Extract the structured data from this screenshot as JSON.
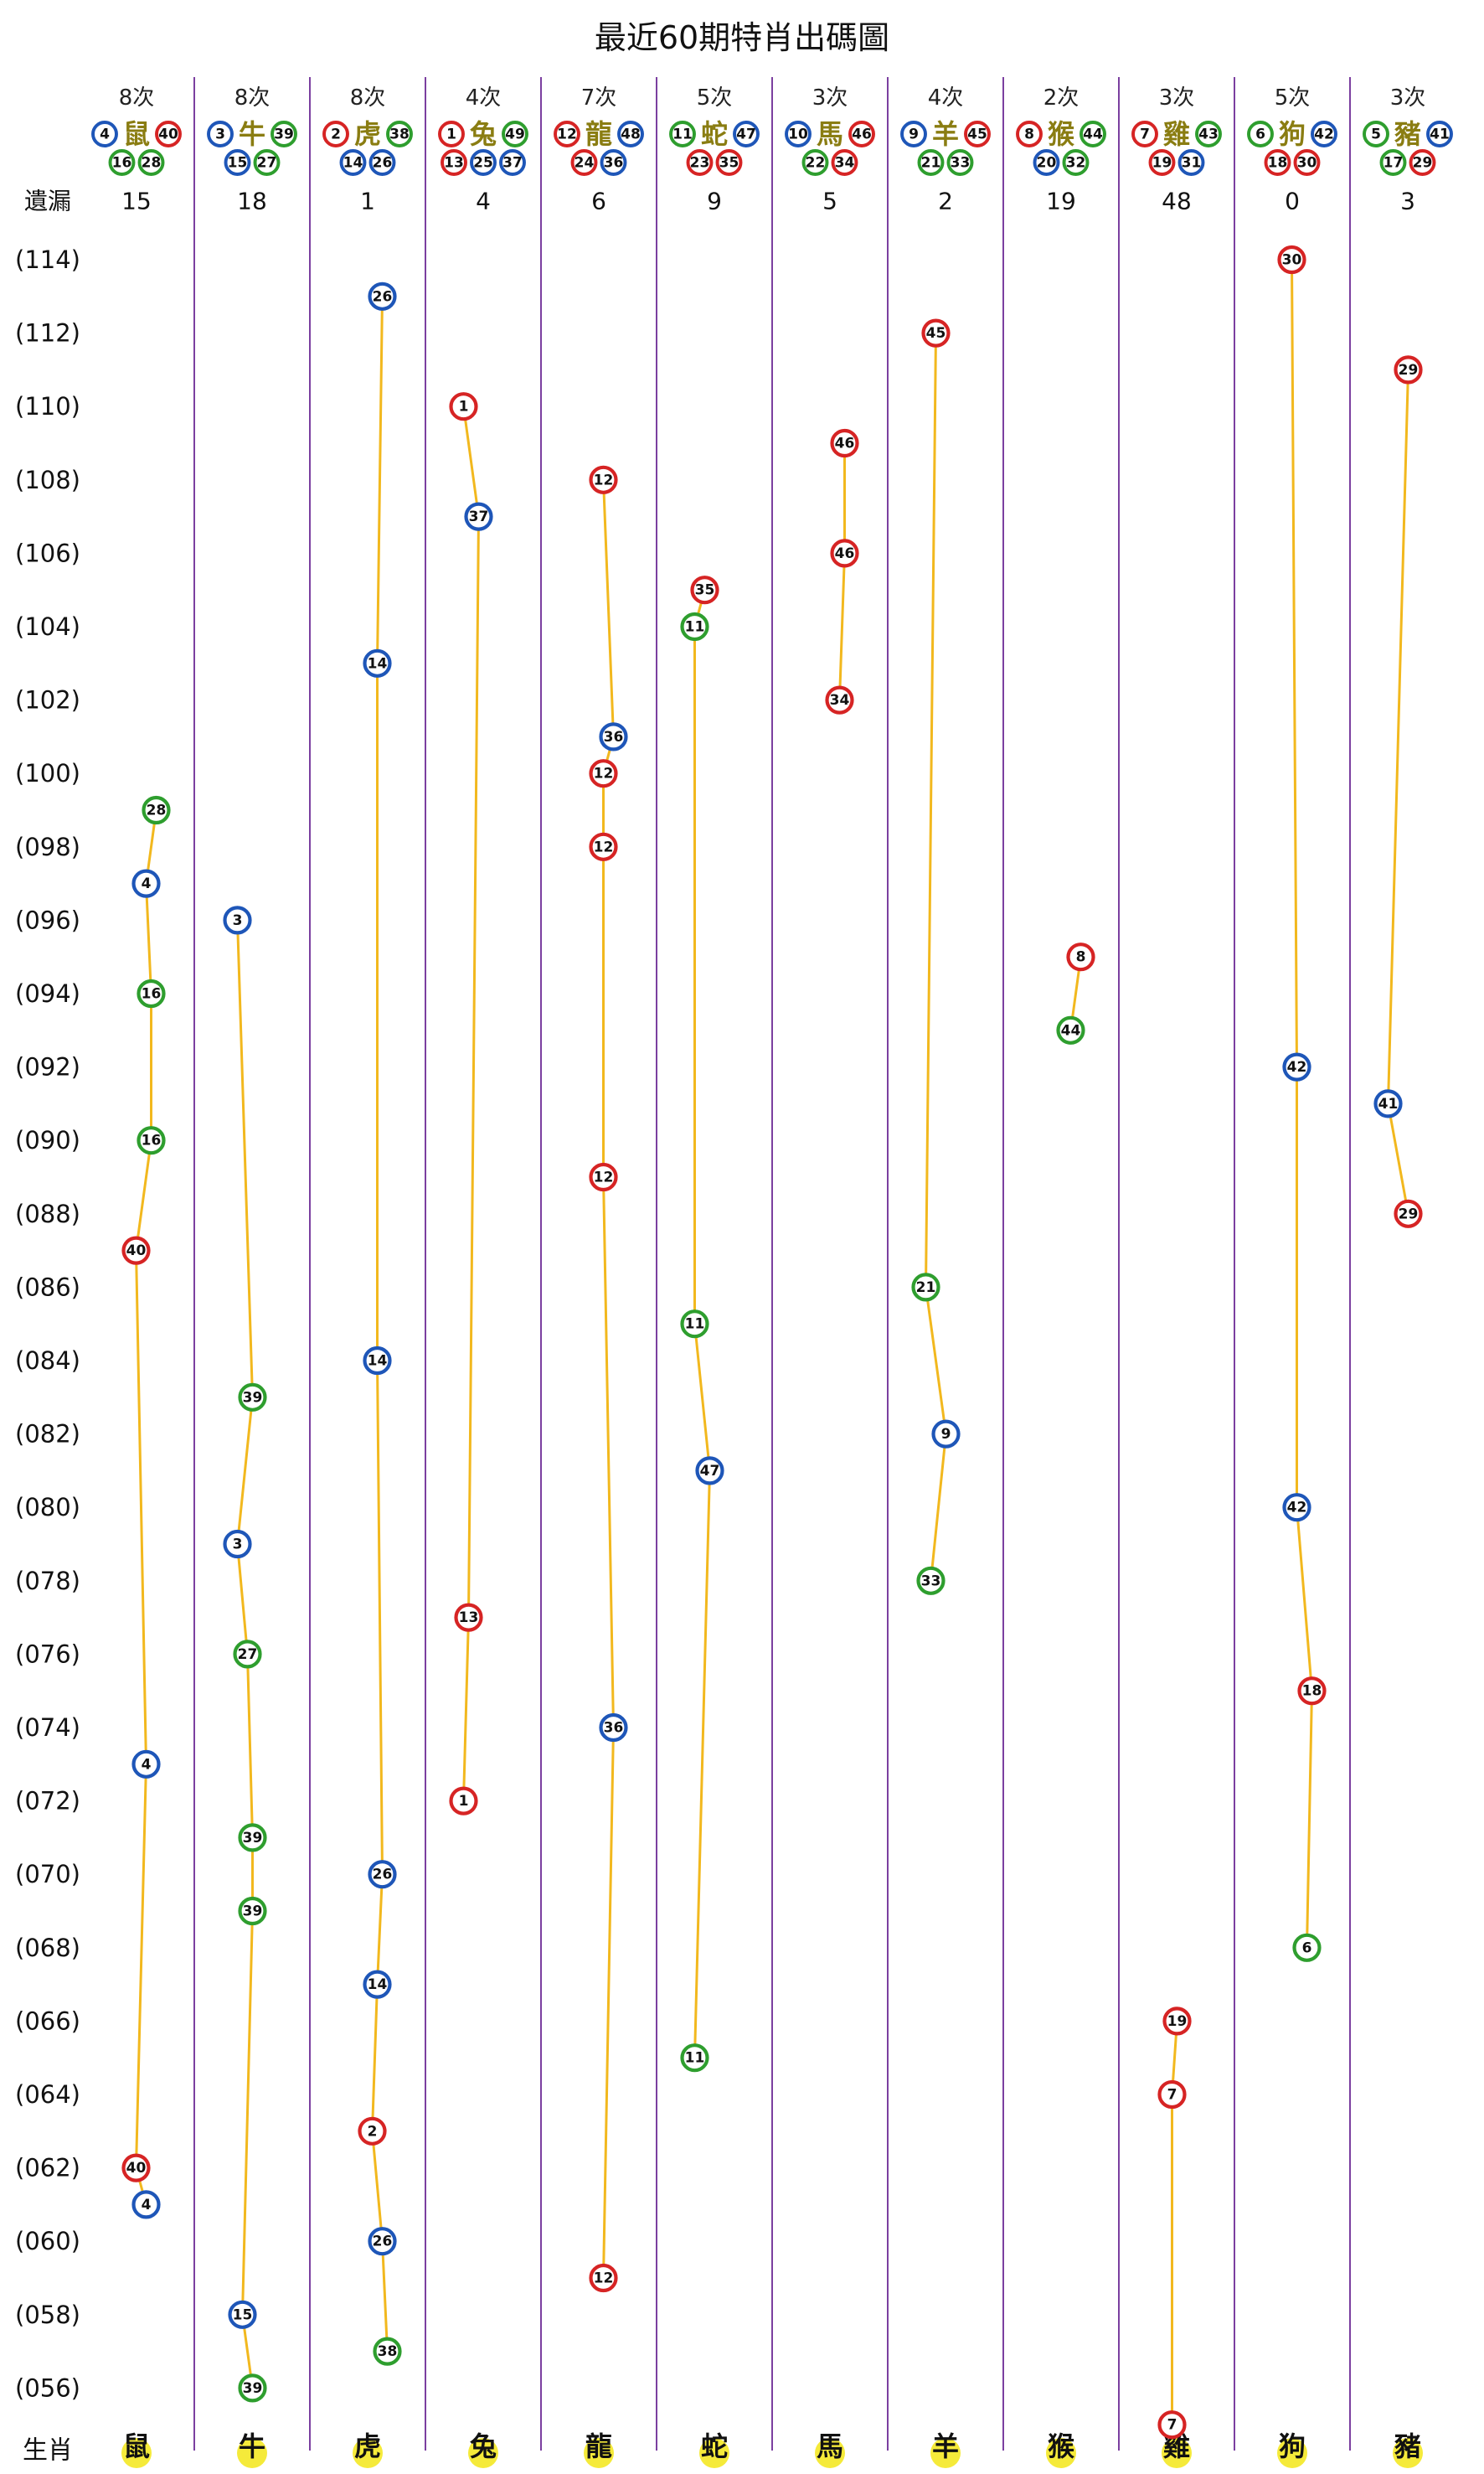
{
  "title": "最近60期特肖出碼圖",
  "labels": {
    "missing": "遺漏",
    "zodiac": "生肖"
  },
  "colors": {
    "red": "#d62424",
    "blue": "#1e56b8",
    "green": "#2e9e2e",
    "line": "#f2b81e",
    "divider": "#7b3fa0"
  },
  "zodiacs": [
    {
      "name": "鼠",
      "count": "8次",
      "missing": "15",
      "nums": [
        {
          "n": "4",
          "c": "blue"
        },
        {
          "n": "40",
          "c": "red"
        },
        {
          "n": "16",
          "c": "green"
        },
        {
          "n": "28",
          "c": "green"
        }
      ]
    },
    {
      "name": "牛",
      "count": "8次",
      "missing": "18",
      "nums": [
        {
          "n": "3",
          "c": "blue"
        },
        {
          "n": "39",
          "c": "green"
        },
        {
          "n": "15",
          "c": "blue"
        },
        {
          "n": "27",
          "c": "green"
        }
      ]
    },
    {
      "name": "虎",
      "count": "8次",
      "missing": "1",
      "nums": [
        {
          "n": "2",
          "c": "red"
        },
        {
          "n": "38",
          "c": "green"
        },
        {
          "n": "14",
          "c": "blue"
        },
        {
          "n": "26",
          "c": "blue"
        }
      ]
    },
    {
      "name": "兔",
      "count": "4次",
      "missing": "4",
      "nums": [
        {
          "n": "1",
          "c": "red"
        },
        {
          "n": "49",
          "c": "green"
        },
        {
          "n": "13",
          "c": "red"
        },
        {
          "n": "25",
          "c": "blue"
        },
        {
          "n": "37",
          "c": "blue"
        }
      ]
    },
    {
      "name": "龍",
      "count": "7次",
      "missing": "6",
      "nums": [
        {
          "n": "12",
          "c": "red"
        },
        {
          "n": "48",
          "c": "blue"
        },
        {
          "n": "24",
          "c": "red"
        },
        {
          "n": "36",
          "c": "blue"
        }
      ]
    },
    {
      "name": "蛇",
      "count": "5次",
      "missing": "9",
      "nums": [
        {
          "n": "11",
          "c": "green"
        },
        {
          "n": "47",
          "c": "blue"
        },
        {
          "n": "23",
          "c": "red"
        },
        {
          "n": "35",
          "c": "red"
        }
      ]
    },
    {
      "name": "馬",
      "count": "3次",
      "missing": "5",
      "nums": [
        {
          "n": "10",
          "c": "blue"
        },
        {
          "n": "46",
          "c": "red"
        },
        {
          "n": "22",
          "c": "green"
        },
        {
          "n": "34",
          "c": "red"
        }
      ]
    },
    {
      "name": "羊",
      "count": "4次",
      "missing": "2",
      "nums": [
        {
          "n": "9",
          "c": "blue"
        },
        {
          "n": "45",
          "c": "red"
        },
        {
          "n": "21",
          "c": "green"
        },
        {
          "n": "33",
          "c": "green"
        }
      ]
    },
    {
      "name": "猴",
      "count": "2次",
      "missing": "19",
      "nums": [
        {
          "n": "8",
          "c": "red"
        },
        {
          "n": "44",
          "c": "green"
        },
        {
          "n": "20",
          "c": "blue"
        },
        {
          "n": "32",
          "c": "green"
        }
      ]
    },
    {
      "name": "雞",
      "count": "3次",
      "missing": "48",
      "nums": [
        {
          "n": "7",
          "c": "red"
        },
        {
          "n": "43",
          "c": "green"
        },
        {
          "n": "19",
          "c": "red"
        },
        {
          "n": "31",
          "c": "blue"
        }
      ]
    },
    {
      "name": "狗",
      "count": "5次",
      "missing": "0",
      "nums": [
        {
          "n": "6",
          "c": "green"
        },
        {
          "n": "42",
          "c": "blue"
        },
        {
          "n": "18",
          "c": "red"
        },
        {
          "n": "30",
          "c": "red"
        }
      ]
    },
    {
      "name": "豬",
      "count": "3次",
      "missing": "3",
      "nums": [
        {
          "n": "5",
          "c": "green"
        },
        {
          "n": "41",
          "c": "blue"
        },
        {
          "n": "17",
          "c": "green"
        },
        {
          "n": "29",
          "c": "red"
        }
      ]
    }
  ],
  "chart_data": {
    "type": "scatter",
    "title": "最近60期特肖出碼圖",
    "xlabel": "生肖",
    "ylabel": "",
    "categories": [
      "鼠",
      "牛",
      "虎",
      "兔",
      "龍",
      "蛇",
      "馬",
      "羊",
      "猴",
      "雞",
      "狗",
      "豬"
    ],
    "y_tick_labels": [
      "(114)",
      "(112)",
      "(110)",
      "(108)",
      "(106)",
      "(104)",
      "(102)",
      "(100)",
      "(098)",
      "(096)",
      "(094)",
      "(092)",
      "(090)",
      "(088)",
      "(086)",
      "(084)",
      "(082)",
      "(080)",
      "(078)",
      "(076)",
      "(074)",
      "(072)",
      "(070)",
      "(068)",
      "(066)",
      "(064)",
      "(062)",
      "(060)",
      "(058)",
      "(056)"
    ],
    "ylim": [
      55,
      115
    ],
    "points": [
      {
        "p": 114,
        "z": 10,
        "n": 30,
        "c": "red"
      },
      {
        "p": 113,
        "z": 2,
        "n": 26,
        "c": "blue"
      },
      {
        "p": 112,
        "z": 7,
        "n": 45,
        "c": "red"
      },
      {
        "p": 111,
        "z": 11,
        "n": 29,
        "c": "red"
      },
      {
        "p": 110,
        "z": 3,
        "n": 1,
        "c": "red"
      },
      {
        "p": 109,
        "z": 6,
        "n": 46,
        "c": "red"
      },
      {
        "p": 108,
        "z": 4,
        "n": 12,
        "c": "red"
      },
      {
        "p": 107,
        "z": 3,
        "n": 37,
        "c": "blue"
      },
      {
        "p": 106,
        "z": 6,
        "n": 46,
        "c": "red"
      },
      {
        "p": 105,
        "z": 5,
        "n": 35,
        "c": "red"
      },
      {
        "p": 104,
        "z": 5,
        "n": 11,
        "c": "green"
      },
      {
        "p": 103,
        "z": 2,
        "n": 14,
        "c": "blue"
      },
      {
        "p": 102,
        "z": 6,
        "n": 34,
        "c": "red"
      },
      {
        "p": 101,
        "z": 4,
        "n": 36,
        "c": "blue"
      },
      {
        "p": 100,
        "z": 4,
        "n": 12,
        "c": "red"
      },
      {
        "p": 99,
        "z": 0,
        "n": 28,
        "c": "green"
      },
      {
        "p": 98,
        "z": 4,
        "n": 12,
        "c": "red"
      },
      {
        "p": 97,
        "z": 0,
        "n": 4,
        "c": "blue"
      },
      {
        "p": 96,
        "z": 1,
        "n": 3,
        "c": "blue"
      },
      {
        "p": 95,
        "z": 8,
        "n": 8,
        "c": "red"
      },
      {
        "p": 94,
        "z": 0,
        "n": 16,
        "c": "green"
      },
      {
        "p": 93,
        "z": 8,
        "n": 44,
        "c": "green"
      },
      {
        "p": 92,
        "z": 10,
        "n": 42,
        "c": "blue"
      },
      {
        "p": 91,
        "z": 11,
        "n": 41,
        "c": "blue"
      },
      {
        "p": 90,
        "z": 0,
        "n": 16,
        "c": "green"
      },
      {
        "p": 89,
        "z": 4,
        "n": 12,
        "c": "red"
      },
      {
        "p": 88,
        "z": 11,
        "n": 29,
        "c": "red"
      },
      {
        "p": 87,
        "z": 0,
        "n": 40,
        "c": "red"
      },
      {
        "p": 86,
        "z": 7,
        "n": 21,
        "c": "green"
      },
      {
        "p": 85,
        "z": 5,
        "n": 11,
        "c": "green"
      },
      {
        "p": 84,
        "z": 2,
        "n": 14,
        "c": "blue"
      },
      {
        "p": 83,
        "z": 1,
        "n": 39,
        "c": "green"
      },
      {
        "p": 82,
        "z": 7,
        "n": 9,
        "c": "blue"
      },
      {
        "p": 81,
        "z": 5,
        "n": 47,
        "c": "blue"
      },
      {
        "p": 80,
        "z": 10,
        "n": 42,
        "c": "blue"
      },
      {
        "p": 79,
        "z": 1,
        "n": 3,
        "c": "blue"
      },
      {
        "p": 78,
        "z": 7,
        "n": 33,
        "c": "green"
      },
      {
        "p": 77,
        "z": 3,
        "n": 13,
        "c": "red"
      },
      {
        "p": 76,
        "z": 1,
        "n": 27,
        "c": "green"
      },
      {
        "p": 75,
        "z": 10,
        "n": 18,
        "c": "red"
      },
      {
        "p": 74,
        "z": 4,
        "n": 36,
        "c": "blue"
      },
      {
        "p": 73,
        "z": 0,
        "n": 4,
        "c": "blue"
      },
      {
        "p": 72,
        "z": 3,
        "n": 1,
        "c": "red"
      },
      {
        "p": 71,
        "z": 1,
        "n": 39,
        "c": "green"
      },
      {
        "p": 70,
        "z": 2,
        "n": 26,
        "c": "blue"
      },
      {
        "p": 69,
        "z": 1,
        "n": 39,
        "c": "green"
      },
      {
        "p": 68,
        "z": 10,
        "n": 6,
        "c": "green"
      },
      {
        "p": 67,
        "z": 2,
        "n": 14,
        "c": "blue"
      },
      {
        "p": 66,
        "z": 9,
        "n": 19,
        "c": "red"
      },
      {
        "p": 65,
        "z": 5,
        "n": 11,
        "c": "green"
      },
      {
        "p": 64,
        "z": 9,
        "n": 7,
        "c": "red"
      },
      {
        "p": 63,
        "z": 2,
        "n": 2,
        "c": "red"
      },
      {
        "p": 62,
        "z": 0,
        "n": 40,
        "c": "red"
      },
      {
        "p": 61,
        "z": 0,
        "n": 4,
        "c": "blue"
      },
      {
        "p": 60,
        "z": 2,
        "n": 26,
        "c": "blue"
      },
      {
        "p": 59,
        "z": 4,
        "n": 12,
        "c": "red"
      },
      {
        "p": 58,
        "z": 1,
        "n": 15,
        "c": "blue"
      },
      {
        "p": 57,
        "z": 2,
        "n": 38,
        "c": "green"
      },
      {
        "p": 56,
        "z": 1,
        "n": 39,
        "c": "green"
      },
      {
        "p": 55,
        "z": 9,
        "n": 7,
        "c": "red"
      }
    ]
  }
}
